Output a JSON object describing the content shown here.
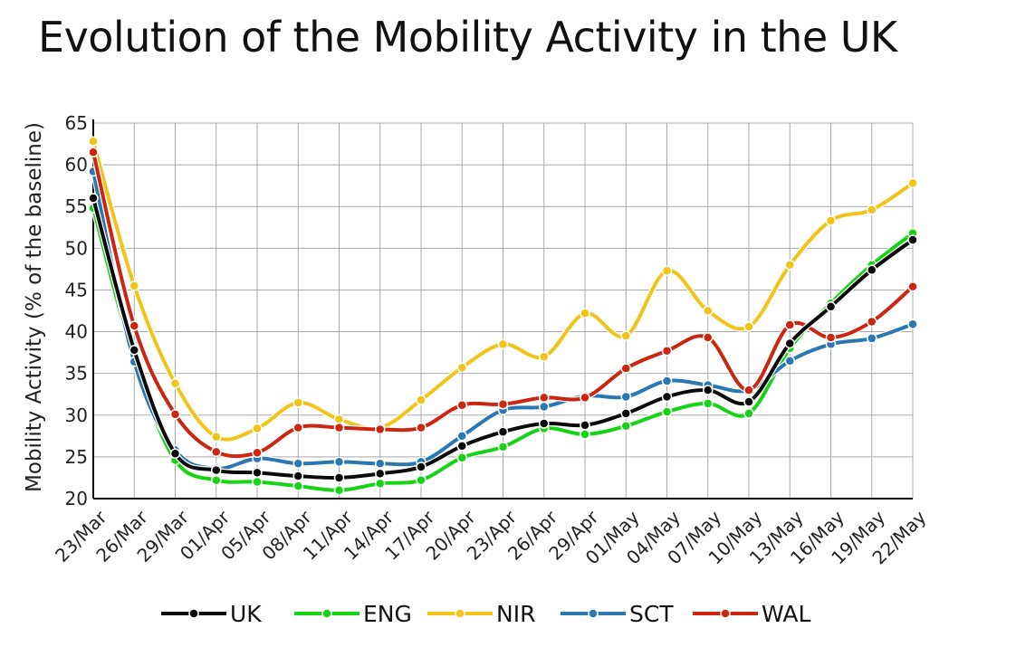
{
  "chart_data": {
    "type": "line",
    "title": "Evolution of the Mobility Activity in the UK",
    "xlabel": "",
    "ylabel": "Mobility Activity (% of the baseline)",
    "ylim": [
      20,
      65
    ],
    "yticks": [
      "20",
      "25",
      "30",
      "35",
      "40",
      "45",
      "50",
      "55",
      "60",
      "65"
    ],
    "categories": [
      "23/Mar",
      "26/Mar",
      "29/Mar",
      "01/Apr",
      "05/Apr",
      "08/Apr",
      "11/Apr",
      "14/Apr",
      "17/Apr",
      "20/Apr",
      "23/Apr",
      "26/Apr",
      "29/Apr",
      "01/May",
      "04/May",
      "07/May",
      "10/May",
      "13/May",
      "16/May",
      "19/May",
      "22/May"
    ],
    "grid": true,
    "legend_position": "bottom",
    "series": [
      {
        "name": "UK",
        "color": "#0a0a0a",
        "values": [
          56.0,
          37.8,
          25.4,
          23.4,
          23.1,
          22.7,
          22.5,
          23.0,
          23.8,
          26.3,
          28.0,
          29.0,
          28.8,
          30.2,
          32.2,
          33.0,
          31.6,
          38.6,
          43.0,
          47.4,
          51.0
        ]
      },
      {
        "name": "ENG",
        "color": "#16d316",
        "values": [
          54.8,
          36.6,
          24.6,
          22.2,
          22.0,
          21.5,
          21.0,
          21.8,
          22.2,
          24.9,
          26.2,
          28.4,
          27.7,
          28.7,
          30.4,
          31.4,
          30.2,
          38.0,
          43.4,
          48.0,
          51.8
        ]
      },
      {
        "name": "NIR",
        "color": "#f2c318",
        "values": [
          62.8,
          45.5,
          33.8,
          27.4,
          28.4,
          31.5,
          29.5,
          28.5,
          31.8,
          35.7,
          38.5,
          37.0,
          42.2,
          39.5,
          47.3,
          42.5,
          40.6,
          48.0,
          53.3,
          54.6,
          57.8
        ]
      },
      {
        "name": "SCT",
        "color": "#2a77b2",
        "values": [
          59.2,
          36.4,
          25.8,
          23.6,
          24.8,
          24.2,
          24.4,
          24.2,
          24.4,
          27.5,
          30.6,
          31.0,
          32.3,
          32.2,
          34.1,
          33.6,
          33.0,
          36.5,
          38.5,
          39.2,
          40.9
        ]
      },
      {
        "name": "WAL",
        "color": "#cc2510",
        "values": [
          61.5,
          40.7,
          30.1,
          25.6,
          25.5,
          28.5,
          28.5,
          28.3,
          28.5,
          31.2,
          31.3,
          32.1,
          32.1,
          35.6,
          37.7,
          39.3,
          33.0,
          40.8,
          39.3,
          41.2,
          45.4
        ]
      }
    ]
  }
}
